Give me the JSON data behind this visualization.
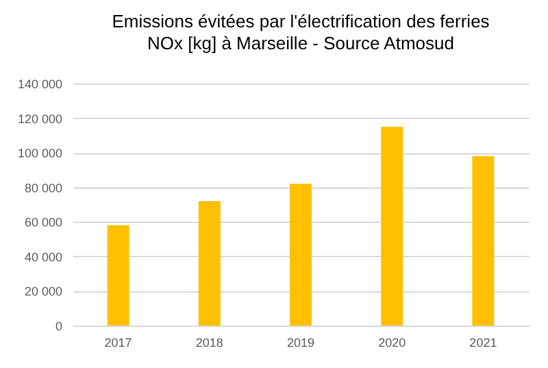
{
  "chart_data": {
    "type": "bar",
    "title": "Emissions évitées par l'électrification des ferries",
    "subtitle": "NOx [kg] à Marseille - Source Atmosud",
    "categories": [
      "2017",
      "2018",
      "2019",
      "2020",
      "2021"
    ],
    "values": [
      58000,
      72000,
      82000,
      115000,
      98000
    ],
    "color": "#ffc000",
    "ylim": [
      0,
      140000
    ],
    "yticks": [
      {
        "value": 0,
        "label": "0"
      },
      {
        "value": 20000,
        "label": "20 000"
      },
      {
        "value": 40000,
        "label": "40 000"
      },
      {
        "value": 60000,
        "label": "60 000"
      },
      {
        "value": 80000,
        "label": "80 000"
      },
      {
        "value": 100000,
        "label": "100 000"
      },
      {
        "value": 120000,
        "label": "120 000"
      },
      {
        "value": 140000,
        "label": "140 000"
      }
    ],
    "grid": "y"
  }
}
